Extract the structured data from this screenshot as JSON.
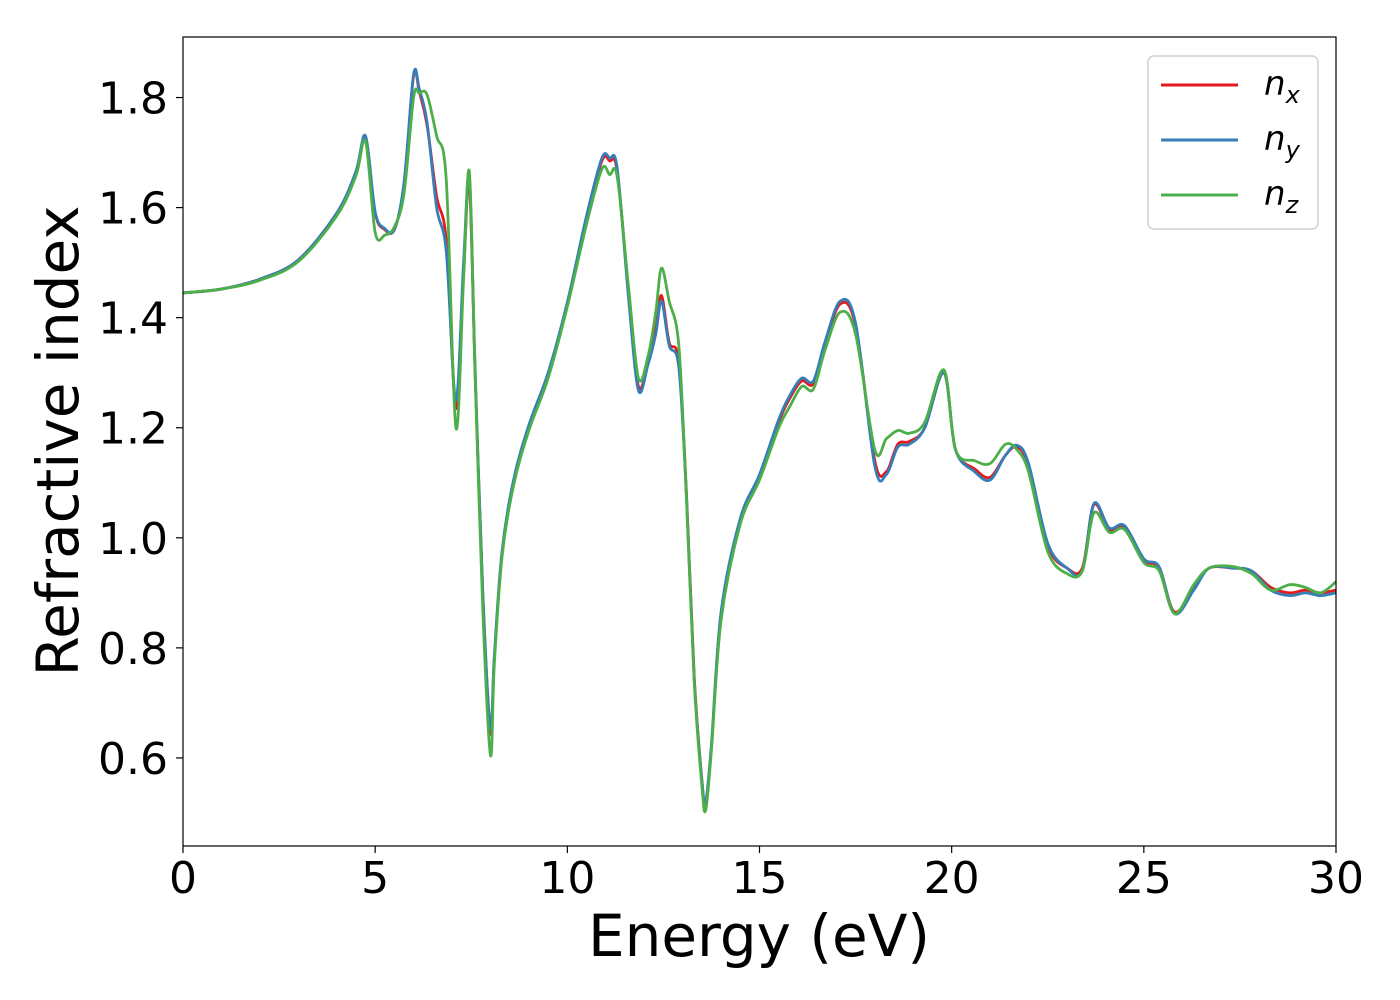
{
  "chart_data": {
    "type": "line",
    "xlabel": "Energy (eV)",
    "ylabel": "Refractive index",
    "xlim": [
      0,
      30
    ],
    "ylim": [
      0.44,
      1.91
    ],
    "grid": false,
    "legend_position": "top-right",
    "x_ticks": [
      0,
      5,
      10,
      15,
      20,
      25,
      30
    ],
    "x_tick_labels": [
      "0",
      "5",
      "10",
      "15",
      "20",
      "25",
      "30"
    ],
    "y_ticks": [
      0.6,
      0.8,
      1.0,
      1.2,
      1.4,
      1.6,
      1.8
    ],
    "y_tick_labels": [
      "0.6",
      "0.8",
      "1.0",
      "1.2",
      "1.4",
      "1.6",
      "1.8"
    ],
    "x": [
      0,
      1,
      2,
      3,
      4,
      4.5,
      4.75,
      5.0,
      5.25,
      5.5,
      5.75,
      6.0,
      6.15,
      6.35,
      6.6,
      6.85,
      7.1,
      7.3,
      7.45,
      7.6,
      7.8,
      8.0,
      8.1,
      8.3,
      8.6,
      9.0,
      9.5,
      10.0,
      10.5,
      10.9,
      11.1,
      11.3,
      11.6,
      11.85,
      12.1,
      12.3,
      12.45,
      12.65,
      12.9,
      13.1,
      13.3,
      13.5,
      13.6,
      13.75,
      14.0,
      14.5,
      15.0,
      15.5,
      15.8,
      16.1,
      16.4,
      16.7,
      17.1,
      17.5,
      18.0,
      18.3,
      18.6,
      18.9,
      19.3,
      19.8,
      20.1,
      20.6,
      21.0,
      21.4,
      21.7,
      22.0,
      22.5,
      23.0,
      23.4,
      23.7,
      24.1,
      24.5,
      25.0,
      25.4,
      25.8,
      26.3,
      26.7,
      27.3,
      27.8,
      28.3,
      28.8,
      29.2,
      29.6,
      30.0
    ],
    "series": [
      {
        "name": "n_x",
        "label_base": "n",
        "label_sub": "x",
        "color": "#e41a1c",
        "values": [
          1.445,
          1.452,
          1.47,
          1.505,
          1.59,
          1.665,
          1.728,
          1.59,
          1.56,
          1.56,
          1.64,
          1.84,
          1.81,
          1.75,
          1.62,
          1.54,
          1.235,
          1.48,
          1.645,
          1.3,
          0.9,
          0.645,
          0.78,
          0.97,
          1.1,
          1.2,
          1.295,
          1.425,
          1.58,
          1.685,
          1.685,
          1.665,
          1.44,
          1.275,
          1.32,
          1.38,
          1.44,
          1.355,
          1.32,
          1.08,
          0.75,
          0.56,
          0.515,
          0.62,
          0.86,
          1.03,
          1.11,
          1.21,
          1.255,
          1.285,
          1.28,
          1.35,
          1.425,
          1.385,
          1.14,
          1.12,
          1.17,
          1.175,
          1.2,
          1.3,
          1.16,
          1.125,
          1.11,
          1.15,
          1.165,
          1.13,
          0.985,
          0.945,
          0.945,
          1.06,
          1.015,
          1.02,
          0.96,
          0.945,
          0.865,
          0.91,
          0.945,
          0.945,
          0.94,
          0.91,
          0.9,
          0.905,
          0.9,
          0.905
        ]
      },
      {
        "name": "n_y",
        "label_base": "n",
        "label_sub": "y",
        "color": "#377eb8",
        "values": [
          1.445,
          1.452,
          1.47,
          1.505,
          1.59,
          1.666,
          1.73,
          1.592,
          1.562,
          1.56,
          1.645,
          1.842,
          1.815,
          1.755,
          1.6,
          1.52,
          1.25,
          1.5,
          1.655,
          1.31,
          0.9,
          0.655,
          0.785,
          0.975,
          1.105,
          1.205,
          1.3,
          1.428,
          1.585,
          1.69,
          1.69,
          1.67,
          1.43,
          1.268,
          1.315,
          1.37,
          1.43,
          1.35,
          1.31,
          1.075,
          0.745,
          0.56,
          0.52,
          0.625,
          0.865,
          1.035,
          1.115,
          1.215,
          1.26,
          1.29,
          1.285,
          1.355,
          1.43,
          1.39,
          1.13,
          1.115,
          1.165,
          1.17,
          1.2,
          1.3,
          1.16,
          1.12,
          1.105,
          1.15,
          1.168,
          1.135,
          0.99,
          0.945,
          0.94,
          1.062,
          1.018,
          1.022,
          0.962,
          0.947,
          0.862,
          0.905,
          0.945,
          0.945,
          0.94,
          0.905,
          0.895,
          0.9,
          0.895,
          0.9
        ]
      },
      {
        "name": "n_z",
        "label_base": "n",
        "label_sub": "z",
        "color": "#4daf4a",
        "values": [
          1.445,
          1.452,
          1.468,
          1.502,
          1.585,
          1.658,
          1.72,
          1.555,
          1.55,
          1.565,
          1.625,
          1.8,
          1.808,
          1.805,
          1.73,
          1.65,
          1.2,
          1.47,
          1.665,
          1.3,
          0.87,
          0.605,
          0.77,
          0.965,
          1.095,
          1.195,
          1.29,
          1.42,
          1.57,
          1.67,
          1.66,
          1.655,
          1.45,
          1.29,
          1.33,
          1.41,
          1.49,
          1.43,
          1.35,
          1.07,
          0.74,
          0.55,
          0.505,
          0.615,
          0.85,
          1.025,
          1.105,
          1.2,
          1.24,
          1.275,
          1.27,
          1.34,
          1.41,
          1.37,
          1.16,
          1.18,
          1.195,
          1.19,
          1.21,
          1.305,
          1.16,
          1.14,
          1.135,
          1.17,
          1.16,
          1.12,
          0.975,
          0.935,
          0.94,
          1.045,
          1.01,
          1.015,
          0.955,
          0.94,
          0.862,
          0.915,
          0.945,
          0.948,
          0.935,
          0.905,
          0.915,
          0.91,
          0.9,
          0.92
        ]
      }
    ]
  }
}
